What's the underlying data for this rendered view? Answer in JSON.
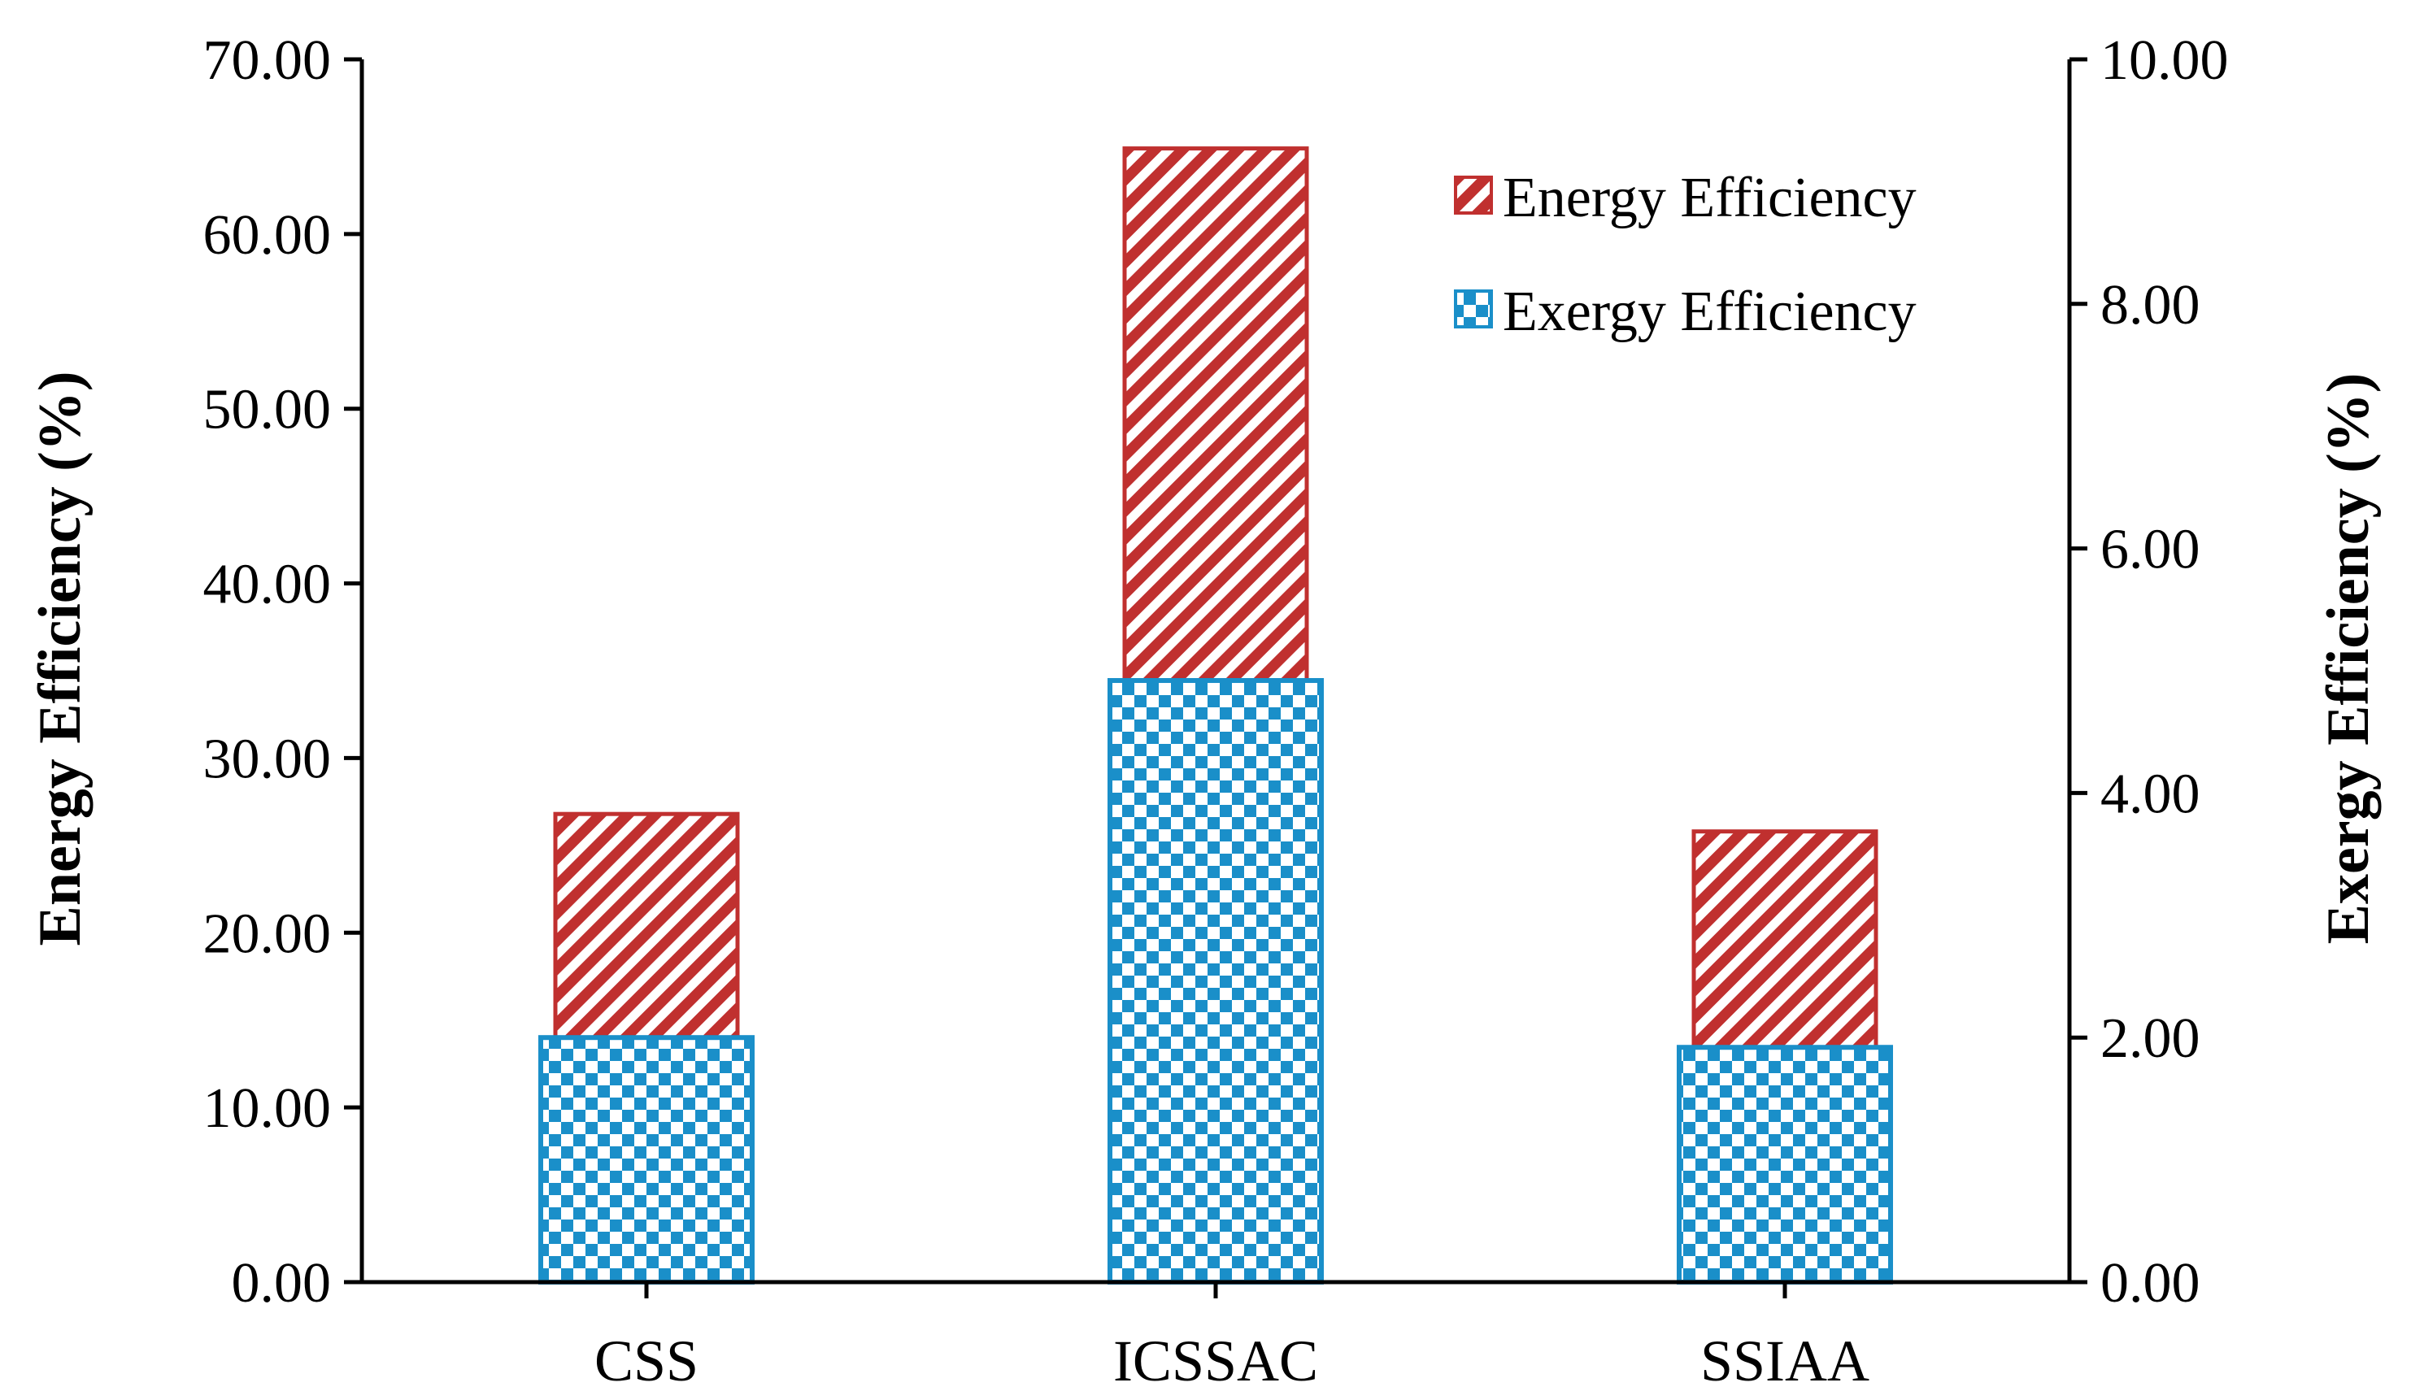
{
  "chart_data": {
    "type": "bar",
    "categories": [
      "CSS",
      "ICSSAC",
      "SSIAA"
    ],
    "series": [
      {
        "name": "Energy Efficiency",
        "axis": "left",
        "values": [
          26.8,
          64.9,
          25.8
        ],
        "color": "#c0302f"
      },
      {
        "name": "Exergy Efficiency",
        "axis": "right",
        "values": [
          2.0,
          4.92,
          1.92
        ],
        "color": "#1a8fc9"
      }
    ],
    "ylabel": "Energy Efficiency (%)",
    "y2label": "Exergy Efficiency (%)",
    "ylim": [
      0,
      70
    ],
    "y2lim": [
      0,
      10
    ],
    "yticks": [
      "0.00",
      "10.00",
      "20.00",
      "30.00",
      "40.00",
      "50.00",
      "60.00",
      "70.00"
    ],
    "y2ticks": [
      "0.00",
      "2.00",
      "4.00",
      "6.00",
      "8.00",
      "10.00"
    ],
    "legend_position": "top-right",
    "grid": false
  }
}
